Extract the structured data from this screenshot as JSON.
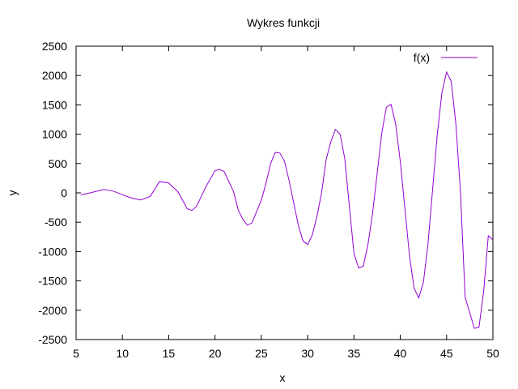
{
  "chart_data": {
    "type": "line",
    "title": "Wykres funkcji",
    "xlabel": "x",
    "ylabel": "y",
    "xlim": [
      5,
      50
    ],
    "ylim": [
      -2500,
      2500
    ],
    "xticks": [
      5,
      10,
      15,
      20,
      25,
      30,
      35,
      40,
      45,
      50
    ],
    "yticks": [
      -2500,
      -2000,
      -1500,
      -1000,
      -500,
      0,
      500,
      1000,
      1500,
      2000,
      2500
    ],
    "grid": false,
    "legend_position": "top-right",
    "series": [
      {
        "name": "f(x)",
        "color": "#9400d3",
        "x": [
          5.5,
          6.0,
          7.0,
          8.0,
          9.0,
          10.0,
          11.0,
          12.0,
          13.0,
          14.0,
          15.0,
          16.0,
          17.0,
          17.5,
          18.0,
          19.0,
          20.0,
          20.5,
          21.0,
          22.0,
          22.5,
          23.0,
          23.5,
          24.0,
          25.0,
          25.5,
          26.0,
          26.5,
          27.0,
          27.5,
          28.0,
          29.0,
          29.5,
          30.0,
          30.5,
          31.0,
          31.5,
          32.0,
          32.5,
          33.0,
          33.5,
          34.0,
          35.0,
          35.5,
          36.0,
          36.5,
          37.0,
          38.0,
          38.5,
          39.0,
          39.5,
          40.0,
          41.0,
          41.5,
          42.0,
          42.5,
          43.0,
          44.0,
          44.5,
          45.0,
          45.5,
          46.0,
          46.5,
          47.0,
          48.0,
          48.5,
          49.0,
          49.5,
          50.0
        ],
        "y": [
          -30,
          -20,
          20,
          60,
          30,
          -30,
          -90,
          -120,
          -60,
          190,
          170,
          20,
          -270,
          -300,
          -230,
          100,
          380,
          400,
          360,
          20,
          -290,
          -450,
          -550,
          -510,
          -120,
          160,
          500,
          690,
          680,
          540,
          210,
          -560,
          -820,
          -880,
          -720,
          -400,
          0,
          570,
          870,
          1080,
          1000,
          590,
          -1030,
          -1280,
          -1250,
          -890,
          -360,
          1020,
          1460,
          1510,
          1180,
          530,
          -1080,
          -1630,
          -1790,
          -1520,
          -850,
          1000,
          1720,
          2060,
          1900,
          1180,
          20,
          -1780,
          -2310,
          -2290,
          -1680,
          -730,
          -800
        ]
      }
    ]
  }
}
